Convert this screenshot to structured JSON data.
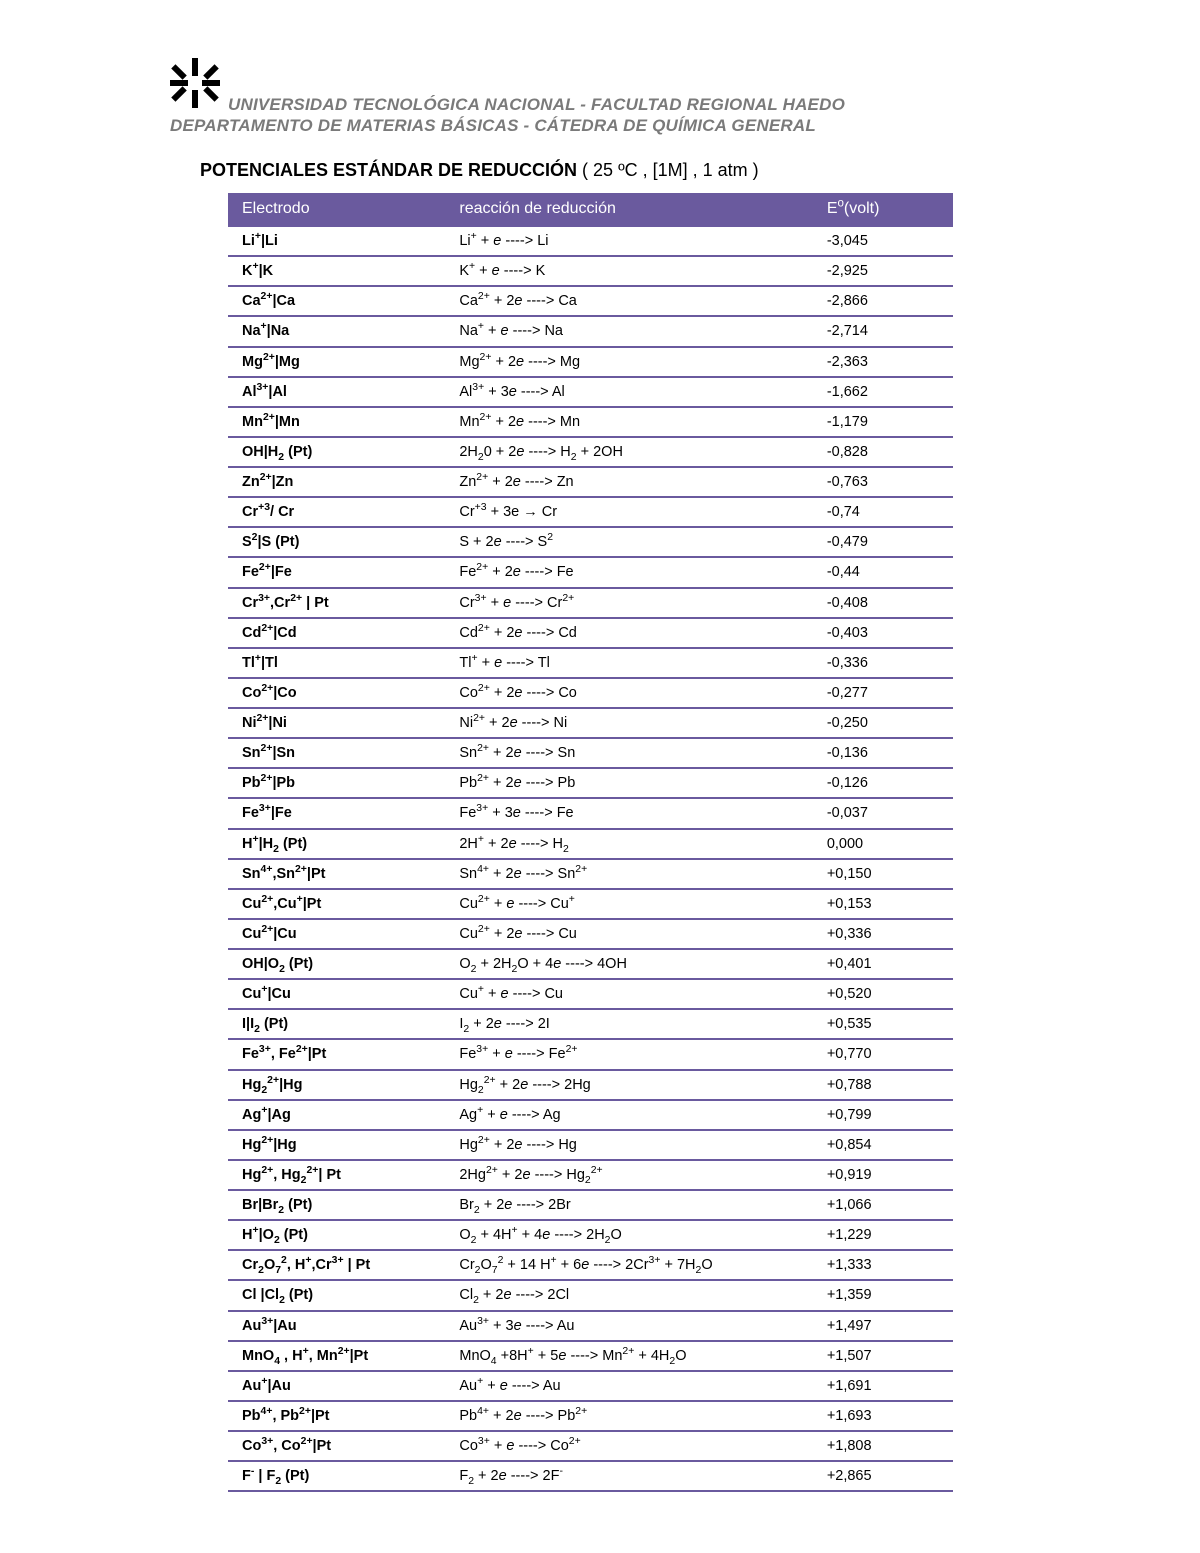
{
  "header": {
    "line1": "UNIVERSIDAD TECNOLÓGICA NACIONAL - FACULTAD REGIONAL HAEDO",
    "line2": "DEPARTAMENTO DE MATERIAS BÁSICAS - CÁTEDRA DE QUÍMICA GENERAL"
  },
  "title": {
    "main": "POTENCIALES ESTÁNDAR DE REDUCCIÓN",
    "conditions": "( 25 ºC ,  [1M] , 1 atm   )"
  },
  "table": {
    "header_bg": "#6a5a9e",
    "header_fg": "#ffffff",
    "row_border": "#6a5a9e",
    "columns": {
      "electrode": "Electrodo",
      "reaction": "reacción de reducción",
      "potential_html": "E<sup>o</sup>(volt)"
    },
    "rows": [
      {
        "electrode_html": "Li<sup>+</sup>|Li",
        "reaction_html": "Li<sup>+</sup>  + <i>e</i> ----&gt; Li",
        "potential": "-3,045"
      },
      {
        "electrode_html": "K<sup>+</sup>|K",
        "reaction_html": "K<sup>+</sup> + <i>e</i> ----&gt; K",
        "potential": "-2,925"
      },
      {
        "electrode_html": "Ca<sup>2+</sup>|Ca",
        "reaction_html": "Ca<sup>2+</sup> + 2<i>e</i> ----&gt; Ca",
        "potential": "-2,866"
      },
      {
        "electrode_html": "Na<sup>+</sup>|Na",
        "reaction_html": "Na<sup>+</sup> + <i>e</i> ----&gt; Na",
        "potential": "-2,714"
      },
      {
        "electrode_html": "Mg<sup>2+</sup>|Mg",
        "reaction_html": "Mg<sup>2+</sup> + 2<i>e</i> ----&gt; Mg",
        "potential": "-2,363"
      },
      {
        "electrode_html": "Al<sup>3+</sup>|Al",
        "reaction_html": "Al<sup>3+</sup> + 3<i>e</i> ----&gt; Al",
        "potential": "-1,662"
      },
      {
        "electrode_html": "Mn<sup>2+</sup>|Mn",
        "reaction_html": "Mn<sup>2+</sup> + 2<i>e</i> ----&gt; Mn",
        "potential": "-1,179"
      },
      {
        "electrode_html": "OH|H<sub>2</sub> (Pt)",
        "reaction_html": "2H<sub>2</sub>0 + 2<i>e</i> ----&gt; H<sub>2</sub> + 2OH",
        "potential": "-0,828"
      },
      {
        "electrode_html": "Zn<sup>2+</sup>|Zn",
        "reaction_html": "Zn<sup>2+</sup> + 2<i>e</i> ----&gt; Zn",
        "potential": "-0,763"
      },
      {
        "electrode_html": "Cr<sup>+3</sup>/ Cr",
        "reaction_html": "Cr<sup>+3</sup> + 3e → Cr",
        "potential": "-0,74"
      },
      {
        "electrode_html": "S<sup>2</sup>|S (Pt)",
        "reaction_html": "S + 2<i>e</i> ----&gt; S<sup>2</sup>",
        "potential": "-0,479"
      },
      {
        "electrode_html": "Fe<sup>2+</sup>|Fe",
        "reaction_html": "Fe<sup>2+</sup> + 2<i>e</i> ----&gt; Fe",
        "potential": "-0,44"
      },
      {
        "electrode_html": "Cr<sup>3+</sup>,Cr<sup>2+</sup> | Pt",
        "reaction_html": "Cr<sup>3+</sup> + <i>e</i> ----&gt; Cr<sup>2+</sup>",
        "potential": "-0,408"
      },
      {
        "electrode_html": "Cd<sup>2+</sup>|Cd",
        "reaction_html": "Cd<sup>2+</sup> + 2<i>e</i> ----&gt; Cd",
        "potential": "-0,403"
      },
      {
        "electrode_html": "Tl<sup>+</sup>|Tl",
        "reaction_html": "Tl<sup>+</sup> + <i>e</i> ----&gt; Tl",
        "potential": "-0,336"
      },
      {
        "electrode_html": "Co<sup>2+</sup>|Co",
        "reaction_html": "Co<sup>2+</sup> + 2<i>e</i> ----&gt; Co",
        "potential": "-0,277"
      },
      {
        "electrode_html": "Ni<sup>2+</sup>|Ni",
        "reaction_html": "Ni<sup>2+</sup> + 2<i>e</i> ----&gt; Ni",
        "potential": "-0,250"
      },
      {
        "electrode_html": "Sn<sup>2+</sup>|Sn",
        "reaction_html": "Sn<sup>2+</sup> + 2<i>e</i> ----&gt; Sn",
        "potential": "-0,136"
      },
      {
        "electrode_html": "Pb<sup>2+</sup>|Pb",
        "reaction_html": "Pb<sup>2+</sup> + 2<i>e</i> ----&gt; Pb",
        "potential": "-0,126"
      },
      {
        "electrode_html": "Fe<sup>3+</sup>|Fe",
        "reaction_html": "Fe<sup>3+</sup> + 3<i>e</i> ----&gt; Fe",
        "potential": "-0,037"
      },
      {
        "electrode_html": "H<sup>+</sup>|H<sub>2</sub> (Pt)",
        "reaction_html": "2H<sup>+</sup> + 2<i>e</i> ----&gt; H<sub>2</sub>",
        "potential": "0,000"
      },
      {
        "electrode_html": "Sn<sup>4+</sup>,Sn<sup>2+</sup>|Pt",
        "reaction_html": "Sn<sup>4+</sup> + 2<i>e</i> ----&gt; Sn<sup>2+</sup>",
        "potential": "+0,150"
      },
      {
        "electrode_html": "Cu<sup>2+</sup>,Cu<sup>+</sup>|Pt",
        "reaction_html": "Cu<sup>2+</sup> + <i>e</i> ----&gt; Cu<sup>+</sup>",
        "potential": "+0,153"
      },
      {
        "electrode_html": "Cu<sup>2+</sup>|Cu",
        "reaction_html": "Cu<sup>2+</sup> + 2<i>e</i> ----&gt; Cu",
        "potential": "+0,336"
      },
      {
        "electrode_html": "OH|O<sub>2</sub> (Pt)",
        "reaction_html": "O<sub>2</sub> + 2H<sub>2</sub>O + 4<i>e</i> ----&gt; 4OH",
        "potential": "+0,401"
      },
      {
        "electrode_html": "Cu<sup>+</sup>|Cu",
        "reaction_html": "Cu<sup>+</sup> + <i>e</i> ----&gt; Cu",
        "potential": "+0,520"
      },
      {
        "electrode_html": "I|I<sub>2</sub> (Pt)",
        "reaction_html": "I<sub>2</sub> + 2<i>e</i> ----&gt; 2I",
        "potential": "+0,535"
      },
      {
        "electrode_html": "Fe<sup>3+</sup>, Fe<sup>2+</sup>|Pt",
        "reaction_html": "Fe<sup>3+</sup> + <i>e</i> ----&gt; Fe<sup>2+</sup>",
        "potential": "+0,770"
      },
      {
        "electrode_html": "Hg<sub>2</sub><sup>2+</sup>|Hg",
        "reaction_html": "Hg<sub>2</sub><sup>2+</sup> + 2<i>e</i> ----&gt; 2Hg",
        "potential": "+0,788"
      },
      {
        "electrode_html": "Ag<sup>+</sup>|Ag",
        "reaction_html": "Ag<sup>+</sup> + <i>e</i> ----&gt; Ag",
        "potential": "+0,799"
      },
      {
        "electrode_html": "Hg<sup>2+</sup>|Hg",
        "reaction_html": "Hg<sup>2+</sup> + 2<i>e</i> ----&gt; Hg",
        "potential": "+0,854"
      },
      {
        "electrode_html": "Hg<sup>2+</sup>, Hg<sub>2</sub><sup>2+</sup>| Pt",
        "reaction_html": "2Hg<sup>2+</sup> + 2<i>e</i> ----&gt; Hg<sub>2</sub><sup>2+</sup>",
        "potential": "+0,919"
      },
      {
        "electrode_html": "Br|Br<sub>2</sub> (Pt)",
        "reaction_html": "Br<sub>2</sub>  + 2<i>e</i> ----&gt; 2Br",
        "potential": "+1,066"
      },
      {
        "electrode_html": "H<sup>+</sup>|O<sub>2</sub> (Pt)",
        "reaction_html": "O<sub>2</sub> + 4H<sup>+</sup> + 4<i>e</i> ----&gt; 2H<sub>2</sub>O",
        "potential": "+1,229"
      },
      {
        "electrode_html": "Cr<sub>2</sub>O<sub>7</sub><sup>2</sup>, H<sup>+</sup>,Cr<sup>3+</sup> | Pt",
        "reaction_html": "Cr<sub>2</sub>O<sub>7</sub><sup>2</sup> + 14 H<sup>+</sup> + 6<i>e</i> ----&gt; 2Cr<sup>3+</sup> + 7H<sub>2</sub>O",
        "potential": "+1,333"
      },
      {
        "electrode_html": "Cl |Cl<sub>2</sub> (Pt)",
        "reaction_html": "Cl<sub>2</sub> + 2<i>e</i> ----&gt; 2Cl",
        "potential": "+1,359"
      },
      {
        "electrode_html": "Au<sup>3+</sup>|Au",
        "reaction_html": "Au<sup>3+</sup> + 3<i>e</i> ----&gt; Au",
        "potential": "+1,497"
      },
      {
        "electrode_html": "MnO<sub>4</sub> , H<sup>+</sup>, Mn<sup>2+</sup>|Pt",
        "reaction_html": "MnO<sub>4</sub> +8H<sup>+</sup> + 5<i>e</i> ----&gt; Mn<sup>2+</sup> + 4H<sub>2</sub>O",
        "potential": "+1,507"
      },
      {
        "electrode_html": "Au<sup>+</sup>|Au",
        "reaction_html": "Au<sup>+</sup> + <i>e</i> ----&gt; Au",
        "potential": "+1,691"
      },
      {
        "electrode_html": "Pb<sup>4+</sup>, Pb<sup>2+</sup>|Pt",
        "reaction_html": "Pb<sup>4+</sup> + 2<i>e</i> ----&gt; Pb<sup>2+</sup>",
        "potential": "+1,693"
      },
      {
        "electrode_html": "Co<sup>3+</sup>, Co<sup>2+</sup>|Pt",
        "reaction_html": "Co<sup>3+</sup> + <i>e</i> ----&gt; Co<sup>2+</sup>",
        "potential": "+1,808"
      },
      {
        "electrode_html": "F<sup>-</sup> | F<sub>2</sub> (Pt)",
        "reaction_html": "F<sub>2</sub> + 2<i>e</i> ----&gt; 2F<sup>-</sup>",
        "potential": "+2,865"
      }
    ]
  }
}
